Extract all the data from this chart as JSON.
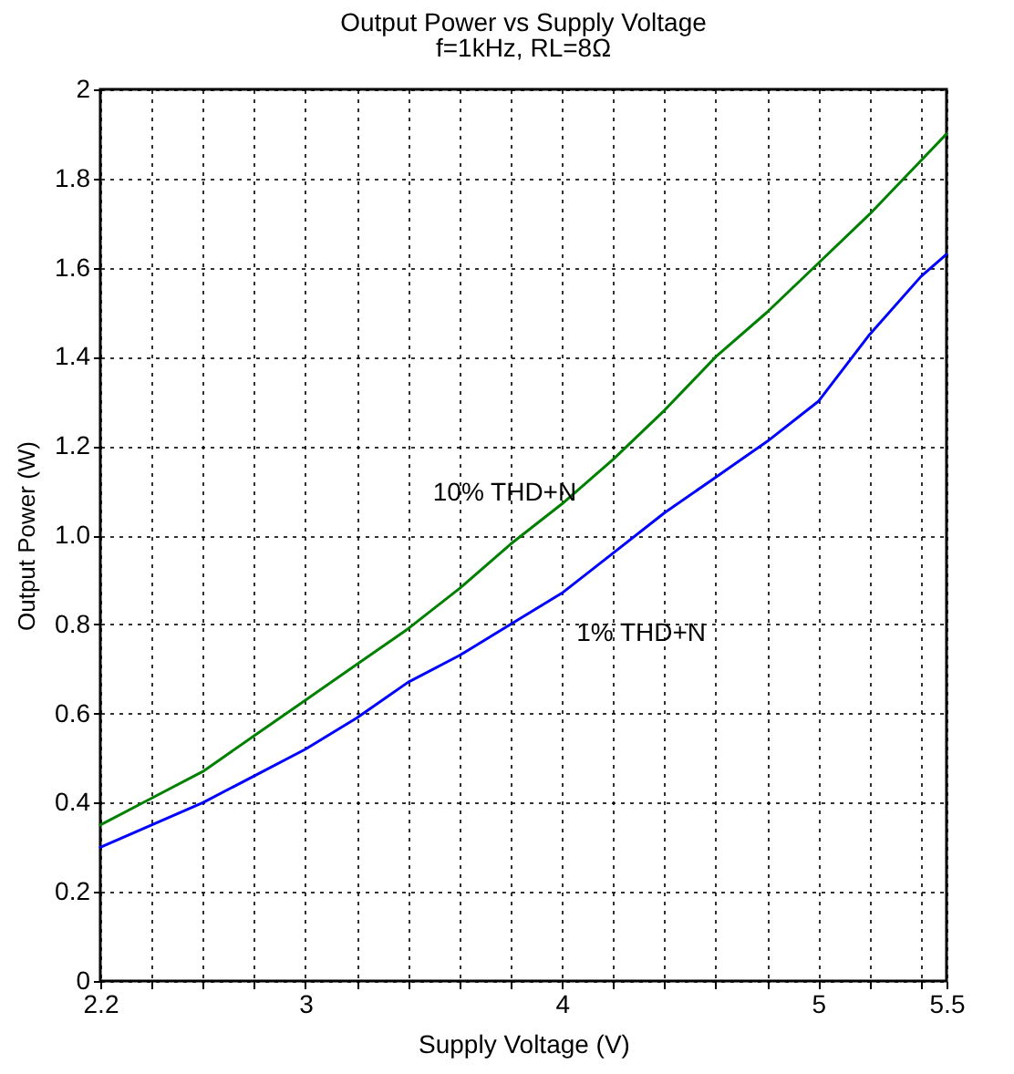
{
  "chart_data": {
    "type": "line",
    "title": "Output Power vs Supply Voltage",
    "subtitle": "f=1kHz, RL=8Ω",
    "xlabel": "Supply Voltage (V)",
    "ylabel": "Output Power (W)",
    "x": [
      2.2,
      2.4,
      2.6,
      2.8,
      3.0,
      3.2,
      3.4,
      3.6,
      3.8,
      4.0,
      4.2,
      4.4,
      4.6,
      4.8,
      5.0,
      5.2,
      5.4,
      5.5
    ],
    "series": [
      {
        "name": "10% THD+N",
        "color": "#008000",
        "values": [
          0.35,
          0.41,
          0.47,
          0.55,
          0.63,
          0.71,
          0.79,
          0.88,
          0.98,
          1.07,
          1.17,
          1.28,
          1.4,
          1.5,
          1.61,
          1.72,
          1.84,
          1.9
        ]
      },
      {
        "name": "1% THD+N",
        "color": "#0000ff",
        "values": [
          0.3,
          0.35,
          0.4,
          0.46,
          0.52,
          0.59,
          0.67,
          0.73,
          0.8,
          0.87,
          0.96,
          1.05,
          1.13,
          1.21,
          1.3,
          1.45,
          1.58,
          1.63
        ]
      }
    ],
    "xlim": [
      2.2,
      5.5
    ],
    "ylim": [
      0,
      2
    ],
    "xticks": [
      2.2,
      {
        "value": 2.4,
        "label": null
      },
      {
        "value": 2.6,
        "label": null
      },
      {
        "value": 2.8,
        "label": null
      },
      3,
      {
        "value": 3.2,
        "label": null
      },
      {
        "value": 3.4,
        "label": null
      },
      {
        "value": 3.6,
        "label": null
      },
      {
        "value": 3.8,
        "label": null
      },
      4,
      {
        "value": 4.2,
        "label": null
      },
      {
        "value": 4.4,
        "label": null
      },
      {
        "value": 4.6,
        "label": null
      },
      {
        "value": 4.8,
        "label": null
      },
      5,
      {
        "value": 5.2,
        "label": null
      },
      {
        "value": 5.4,
        "label": null
      },
      5.5
    ],
    "yticks": [
      0,
      0.2,
      0.4,
      0.6,
      0.8,
      {
        "value": 1,
        "label": "1.0"
      },
      1.2,
      1.4,
      1.6,
      1.8,
      2
    ],
    "grid": true,
    "line_style": "solid"
  }
}
